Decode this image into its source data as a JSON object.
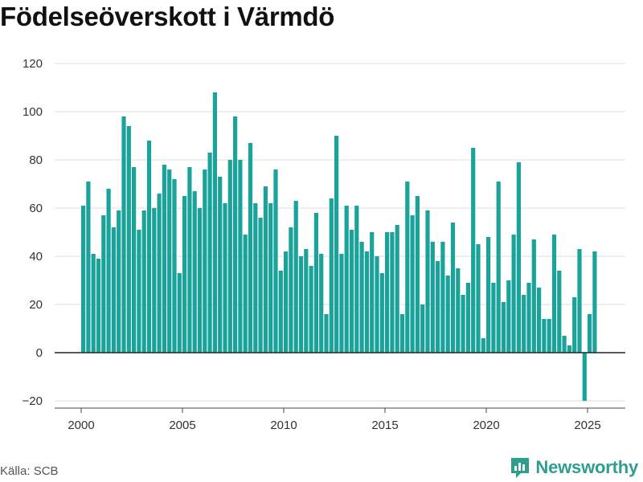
{
  "title": "Födelseöverskott i Värmdö",
  "source": "Källa: SCB",
  "brand": "Newsworthy",
  "colors": {
    "bar": "#1aa39a",
    "grid": "#dddddd",
    "zero": "#222222",
    "brand": "#2e9e8f"
  },
  "chart_data": {
    "type": "bar",
    "title": "Födelseöverskott i Värmdö",
    "xlabel": "",
    "ylabel": "",
    "ylim": [
      -20,
      120
    ],
    "xlim": [
      2000,
      2025.75
    ],
    "yticks": [
      -20,
      0,
      20,
      40,
      60,
      80,
      100,
      120
    ],
    "xticks": [
      2000,
      2005,
      2010,
      2015,
      2020,
      2025
    ],
    "grid": true,
    "frequency": "quarterly",
    "x_start": "2000 Q1",
    "series": [
      {
        "values": [
          61,
          71,
          41,
          39,
          57,
          68,
          52,
          59,
          98,
          94,
          77,
          51,
          59,
          88,
          60,
          66,
          78,
          76,
          72,
          33,
          65,
          77,
          67,
          60,
          76,
          83,
          108,
          73,
          62,
          80,
          98,
          80,
          49,
          87,
          62,
          56,
          69,
          62,
          76,
          34,
          42,
          52,
          63,
          40,
          43,
          36,
          58,
          41,
          16,
          64,
          90,
          41,
          61,
          51,
          61,
          46,
          42,
          50,
          40,
          33,
          50,
          50,
          53,
          16,
          71,
          57,
          65,
          20,
          59,
          46,
          38,
          46,
          32,
          54,
          35,
          24,
          29,
          85,
          45,
          6,
          48,
          29,
          71,
          21,
          30,
          49,
          79,
          24,
          29,
          47,
          27,
          14,
          14,
          49,
          34,
          7,
          3,
          23,
          43,
          -20,
          16,
          42
        ]
      }
    ]
  }
}
